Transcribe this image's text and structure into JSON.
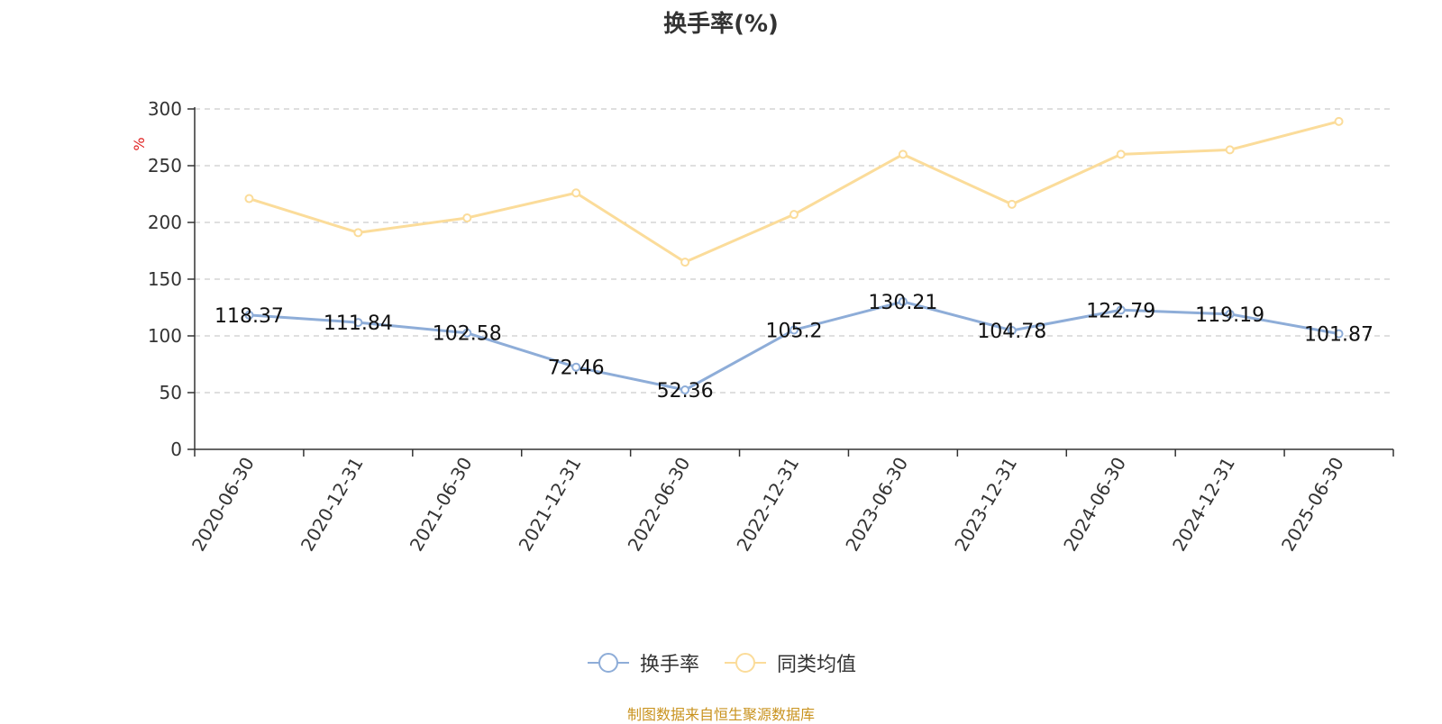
{
  "chart_data": {
    "type": "line",
    "title": "换手率(%)",
    "ylabel": "%",
    "xlabel": "",
    "categories": [
      "2020-06-30",
      "2020-12-31",
      "2021-06-30",
      "2021-12-31",
      "2022-06-30",
      "2022-12-31",
      "2023-06-30",
      "2023-12-31",
      "2024-06-30",
      "2024-12-31",
      "2025-06-30"
    ],
    "ylim": [
      0,
      300
    ],
    "yticks": [
      "0",
      "50",
      "100",
      "150",
      "200",
      "250",
      "300"
    ],
    "grid": true,
    "legend_position": "bottom",
    "series": [
      {
        "name": "换手率",
        "color": "#8eadd8",
        "values": [
          118.37,
          111.84,
          102.58,
          72.46,
          52.36,
          105.2,
          130.21,
          104.78,
          122.79,
          119.19,
          101.87
        ],
        "labels": [
          "118.37",
          "111.84",
          "102.58",
          "72.46",
          "52.36",
          "105.2",
          "130.21",
          "104.78",
          "122.79",
          "119.19",
          "101.87"
        ]
      },
      {
        "name": "同类均值",
        "color": "#fbdc9a",
        "values": [
          221,
          191,
          204,
          226,
          165,
          207,
          260,
          216,
          260,
          264,
          289
        ]
      }
    ]
  },
  "source_note": "制图数据来自恒生聚源数据库"
}
